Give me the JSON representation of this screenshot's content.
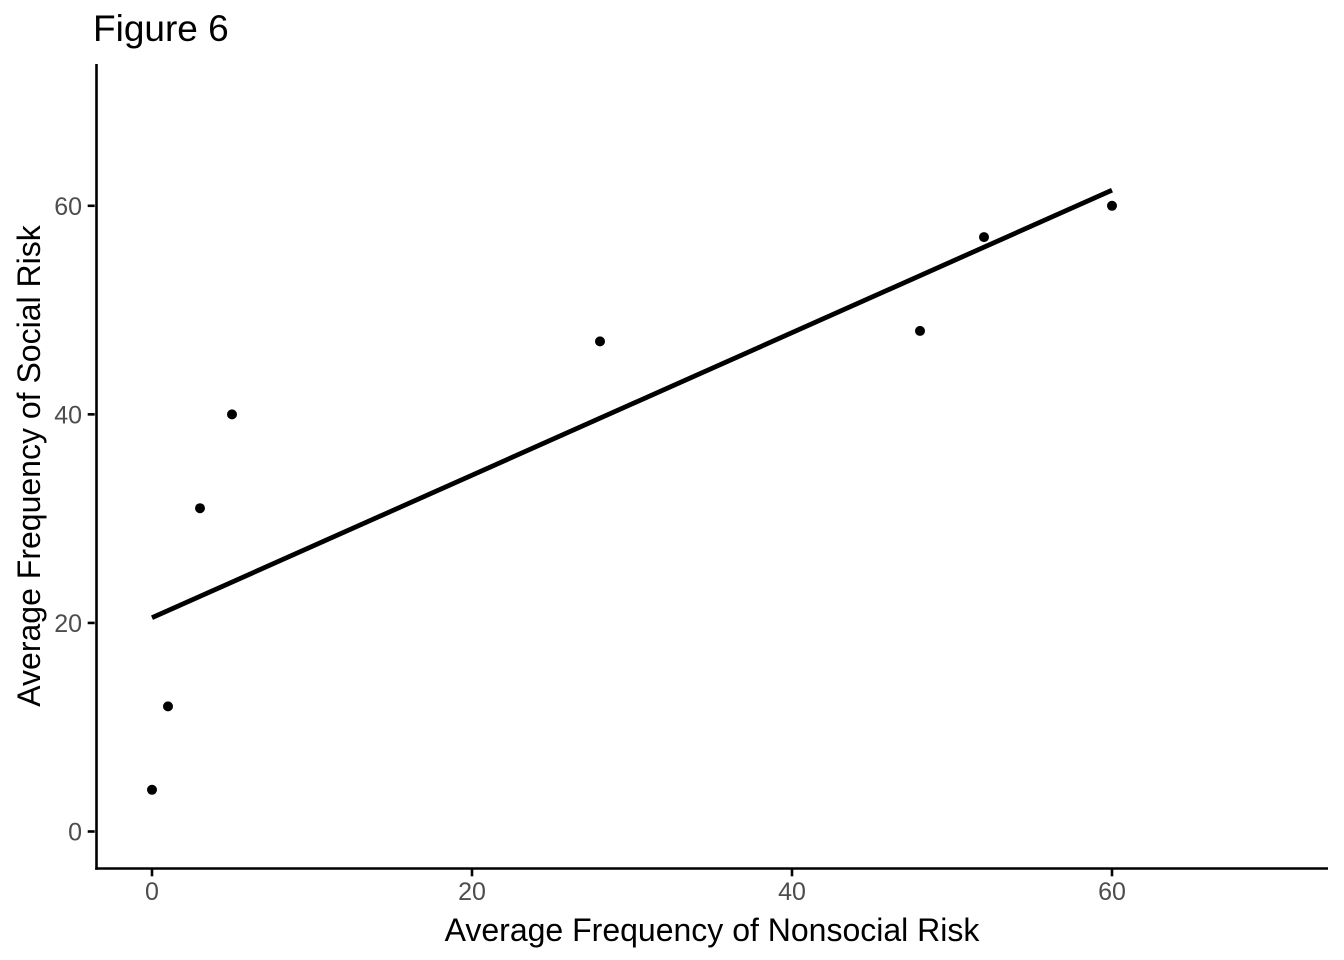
{
  "title": "Figure 6",
  "chart_data": {
    "type": "scatter",
    "title": "Figure 6",
    "xlabel": "Average Frequency of Nonsocial Risk",
    "ylabel": "Average Frequency of Social Risk",
    "points": [
      {
        "x": 0,
        "y": 4
      },
      {
        "x": 1,
        "y": 12
      },
      {
        "x": 3,
        "y": 31
      },
      {
        "x": 5,
        "y": 40
      },
      {
        "x": 28,
        "y": 47
      },
      {
        "x": 48,
        "y": 48
      },
      {
        "x": 52,
        "y": 57
      },
      {
        "x": 60,
        "y": 60
      }
    ],
    "trend_line": {
      "x1": 0,
      "y1": 20.5,
      "x2": 60,
      "y2": 61.5
    },
    "x_ticks": [
      0,
      20,
      40,
      60
    ],
    "y_ticks": [
      0,
      20,
      40,
      60
    ],
    "xlim": [
      -3.5,
      73.5
    ],
    "ylim": [
      -3.5,
      73.5
    ],
    "grid": "off",
    "legend": "none",
    "colors": {
      "point": "#000000",
      "trend_line": "#000000",
      "axis_line": "#000000",
      "tick_label": "#4D4D4D",
      "text": "#000000",
      "background": "#ffffff"
    }
  }
}
